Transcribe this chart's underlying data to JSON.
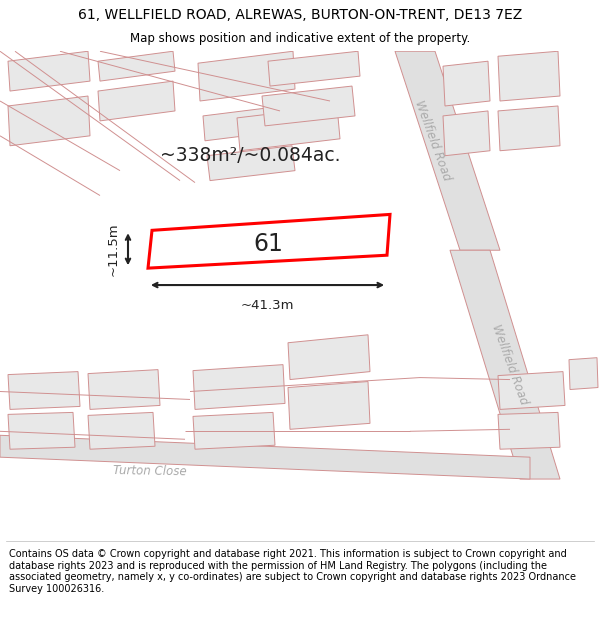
{
  "title": "61, WELLFIELD ROAD, ALREWAS, BURTON-ON-TRENT, DE13 7EZ",
  "subtitle": "Map shows position and indicative extent of the property.",
  "footer": "Contains OS data © Crown copyright and database right 2021. This information is subject to Crown copyright and database rights 2023 and is reproduced with the permission of HM Land Registry. The polygons (including the associated geometry, namely x, y co-ordinates) are subject to Crown copyright and database rights 2023 Ordnance Survey 100026316.",
  "map_bg": "#f2f2f2",
  "road_fill": "#e0e0e0",
  "road_stroke": "#d09090",
  "bld_fill": "#e8e8e8",
  "bld_stroke": "#d09090",
  "highlight_fill": "#ffffff",
  "highlight_stroke": "#ff0000",
  "title_fontsize": 10,
  "subtitle_fontsize": 8.5,
  "footer_fontsize": 7,
  "area_text": "~338m²/~0.084ac.",
  "width_text": "~41.3m",
  "height_text": "~11.5m",
  "label_61": "61",
  "road_label_1": "Wellfield Road",
  "road_label_2": "Wellfield Road",
  "road_label_3": "Turton Close",
  "road_label_color": "#aaaaaa",
  "dim_color": "#222222",
  "text_color": "#222222"
}
